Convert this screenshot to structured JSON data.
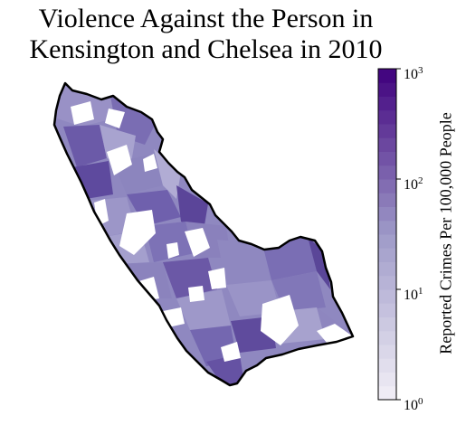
{
  "title": {
    "line1": "Violence Against the Person in",
    "line2": "Kensington and Chelsea in 2010"
  },
  "colorbar": {
    "label": "Reported Crimes Per 100,000 People",
    "scale": "log",
    "range": [
      1,
      1000
    ],
    "ticks": [
      {
        "base": "10",
        "exp": "3",
        "value": 1000
      },
      {
        "base": "10",
        "exp": "2",
        "value": 100
      },
      {
        "base": "10",
        "exp": "1",
        "value": 10
      },
      {
        "base": "10",
        "exp": "0",
        "value": 1
      }
    ],
    "colors": {
      "low": "#f2f0f7",
      "mid": "#9e9ac8",
      "high": "#3f007d"
    }
  }
}
